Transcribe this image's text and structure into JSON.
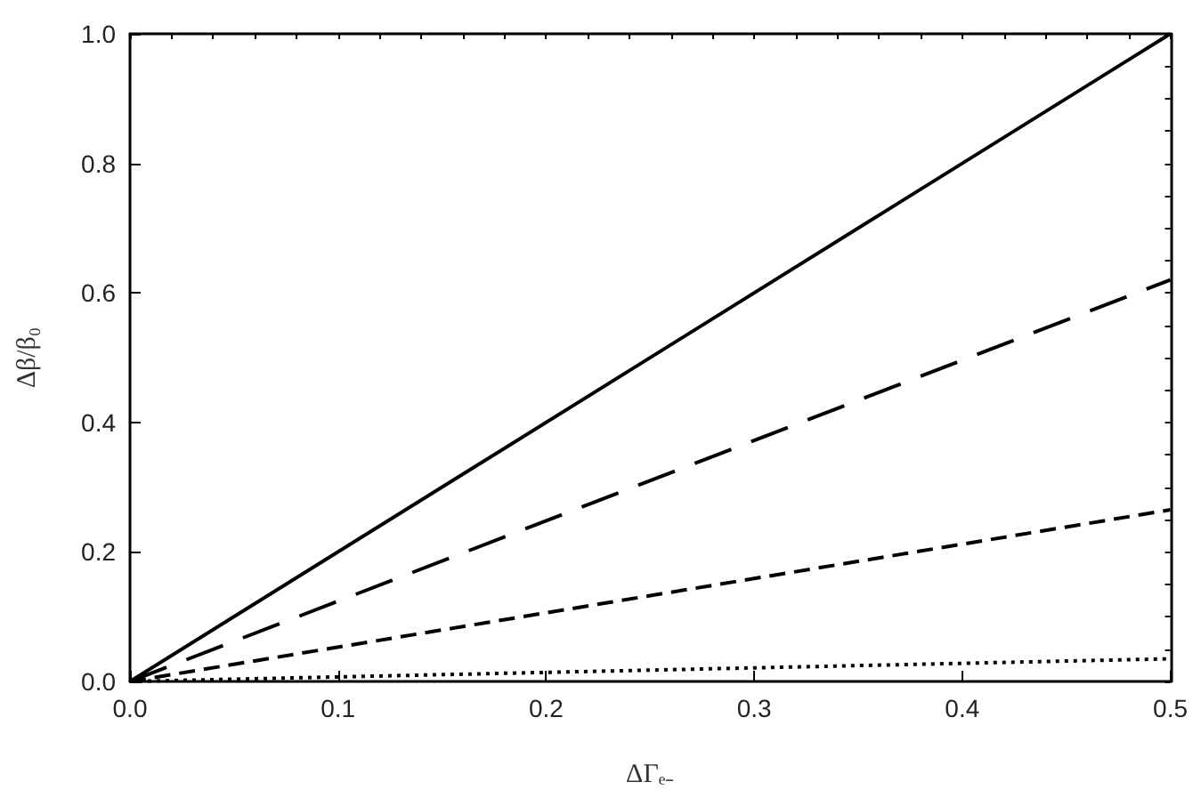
{
  "chart_data": {
    "type": "line",
    "xlabel": "ΔΓₑ₋",
    "ylabel": "Δβ/β₀",
    "xlim": [
      0,
      0.5
    ],
    "ylim": [
      0,
      1
    ],
    "xticks": [
      {
        "value": 0,
        "label": "0.0"
      },
      0.1,
      0.2,
      0.3,
      0.4,
      0.5
    ],
    "yticks": [
      {
        "value": 0,
        "label": "0.0"
      },
      0.2,
      0.4,
      0.6,
      0.8,
      {
        "value": 1,
        "label": "1.0"
      }
    ],
    "grid": false,
    "marker": "none",
    "x": [
      0,
      0.5
    ],
    "series": [
      {
        "color": "#000000",
        "line_style": "solid",
        "values": [
          0,
          1.0
        ]
      },
      {
        "color": "#000000",
        "line_style": "dashed",
        "values": [
          0,
          0.62
        ]
      },
      {
        "color": "#000000",
        "line_style": "dashed",
        "values": [
          0,
          0.265
        ]
      },
      {
        "color": "#000000",
        "line_style": "dotted",
        "values": [
          0,
          0.035
        ]
      }
    ]
  }
}
